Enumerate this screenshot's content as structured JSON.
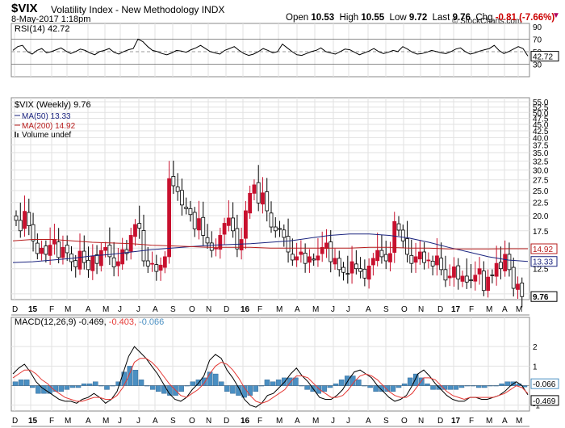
{
  "header": {
    "symbol": "$VIX",
    "name": "Volatility Index - New Methodology INDX",
    "date": "8-May-2017 1:18pm",
    "brand": "© StockCharts.com",
    "open_label": "Open",
    "open": "10.53",
    "high_label": "High",
    "high": "10.55",
    "low_label": "Low",
    "low": "9.72",
    "last_label": "Last",
    "last": "9.76",
    "chg_label": "Chg",
    "chg": "-0.81 (-7.66%)",
    "down_icon": "down-triangle-icon"
  },
  "colors": {
    "up": "#000000",
    "down": "#c8102e",
    "ma50": "#1a237e",
    "ma200": "#b71c1c",
    "macd_hist": "#4a8fc2",
    "macd_signal": "#e53935",
    "rsi": "#000000"
  },
  "chart_data": [
    {
      "type": "line",
      "title": "RSI(14) 42.72",
      "legend": [
        {
          "label": "RSI(14) 42.72"
        }
      ],
      "ylim": [
        10,
        95
      ],
      "yticks": [
        "90",
        "70",
        "50",
        "30"
      ],
      "ref_lines": [
        70,
        30
      ],
      "last_value": "42.72",
      "series": [
        {
          "name": "RSI(14)",
          "values": [
            52,
            58,
            60,
            50,
            46,
            52,
            55,
            48,
            50,
            53,
            56,
            51,
            47,
            50,
            54,
            52,
            48,
            45,
            50,
            52,
            55,
            49,
            46,
            50,
            53,
            55,
            70,
            66,
            58,
            52,
            50,
            47,
            45,
            48,
            52,
            51,
            49,
            53,
            56,
            60,
            55,
            50,
            48,
            46,
            52,
            55,
            58,
            52,
            47,
            44,
            46,
            50,
            55,
            52,
            48,
            50,
            62,
            56,
            50,
            45,
            44,
            47,
            50,
            52,
            56,
            50,
            48,
            46,
            50,
            54,
            53,
            49,
            45,
            48,
            51,
            55,
            50,
            47,
            49,
            52,
            50,
            58,
            54,
            49,
            46,
            47,
            49,
            52,
            50,
            48,
            47,
            50,
            54,
            56,
            50,
            46,
            48,
            51,
            53,
            55,
            60,
            52,
            47,
            50,
            54,
            58,
            55,
            43
          ]
        }
      ]
    },
    {
      "type": "candlestick",
      "title": "$VIX (Weekly) 9.76",
      "legend": [
        {
          "label": "$VIX (Weekly) 9.76",
          "icon": "candle-icon"
        },
        {
          "label": "MA(50) 13.33",
          "color": "#1a237e"
        },
        {
          "label": "MA(200) 14.92",
          "color": "#b71c1c"
        },
        {
          "label": "Volume undef",
          "icon": "volume-bars-icon"
        }
      ],
      "y_scale": "log",
      "ylim": [
        9.5,
        57
      ],
      "yticks": [
        "55.0",
        "52.5",
        "50.0",
        "47.5",
        "45.0",
        "42.5",
        "40.0",
        "37.5",
        "35.0",
        "32.5",
        "30.0",
        "27.5",
        "25.0",
        "22.5",
        "20.0",
        "17.5",
        "15.0",
        "12.5",
        "10.0"
      ],
      "x_labels": [
        "D",
        "15",
        "F",
        "M",
        "A",
        "M",
        "J",
        "J",
        "A",
        "S",
        "O",
        "N",
        "D",
        "16",
        "F",
        "M",
        "A",
        "M",
        "J",
        "J",
        "A",
        "S",
        "O",
        "N",
        "D",
        "17",
        "F",
        "M",
        "A",
        "M"
      ],
      "value_labels": [
        "14.92",
        "13.33",
        "9.76"
      ],
      "closes": [
        19.2,
        17.5,
        20.8,
        18.3,
        16.0,
        14.3,
        15.0,
        14.2,
        15.4,
        16.2,
        13.8,
        15.1,
        14.4,
        13.3,
        12.7,
        14.6,
        13.2,
        12.4,
        14.0,
        13.1,
        14.7,
        15.1,
        13.9,
        12.7,
        13.3,
        14.8,
        14.3,
        16.8,
        18.5,
        17.9,
        13.4,
        12.8,
        13.1,
        12.2,
        12.9,
        13.9,
        27.8,
        26.1,
        24.8,
        22.0,
        21.3,
        20.2,
        17.8,
        19.5,
        16.8,
        15.7,
        14.7,
        15.0,
        16.8,
        18.7,
        19.6,
        17.5,
        14.9,
        16.2,
        20.9,
        24.4,
        26.3,
        22.4,
        24.5,
        20.9,
        18.1,
        17.5,
        17.8,
        16.5,
        14.5,
        13.5,
        13.9,
        14.5,
        13.1,
        13.9,
        13.5,
        14.0,
        15.1,
        15.7,
        13.3,
        13.7,
        12.4,
        12.1,
        11.9,
        13.3,
        12.5,
        12.2,
        11.5,
        12.8,
        13.7,
        14.7,
        13.9,
        13.4,
        14.3,
        19.0,
        17.6,
        16.0,
        14.2,
        13.1,
        13.9,
        14.5,
        13.2,
        13.5,
        12.8,
        14.0,
        12.4,
        11.3,
        11.7,
        12.7,
        11.4,
        11.7,
        11.1,
        11.3,
        11.8,
        12.5,
        10.3,
        11.6,
        11.8,
        13.1,
        12.5,
        14.2,
        12.4,
        10.5,
        10.9,
        9.76
      ],
      "series": [
        {
          "name": "MA(50)",
          "values": [
            13.2,
            13.3,
            13.5,
            13.7,
            14.0,
            14.2,
            14.5,
            14.8,
            15.0,
            15.2,
            15.4,
            15.5,
            15.6,
            15.8,
            16.0,
            16.4,
            16.8,
            17.0,
            17.0,
            16.8,
            16.4,
            15.8,
            15.1,
            14.5,
            13.9,
            13.5,
            13.33
          ]
        },
        {
          "name": "MA(200)",
          "values": [
            16.0,
            16.2,
            16.2,
            16.0,
            15.8,
            15.7,
            15.6,
            15.4,
            15.3,
            15.2,
            15.1,
            15.1,
            15.1,
            15.0,
            15.0,
            15.0,
            15.0,
            15.0,
            15.1,
            15.1,
            15.0,
            15.0,
            14.9,
            14.9,
            14.9,
            14.92,
            14.92
          ]
        }
      ]
    },
    {
      "type": "line",
      "title": "MACD(12,26,9)",
      "legend": [
        {
          "label": "MACD(12,26,9) -0.469,",
          "color": "#000000"
        },
        {
          "label": "-0.403,",
          "color": "#e53935"
        },
        {
          "label": "-0.066",
          "color": "#4a8fc2"
        }
      ],
      "ylim": [
        -1.3,
        3
      ],
      "yticks": [
        "2",
        "1",
        "0",
        "-1"
      ],
      "value_labels": [
        "-0.066",
        "-0.469"
      ],
      "series": [
        {
          "name": "MACD",
          "values": [
            0.6,
            0.9,
            1.1,
            0.7,
            0.2,
            -0.1,
            -0.3,
            -0.5,
            -0.7,
            -0.8,
            -0.8,
            -0.9,
            -0.7,
            -0.6,
            -0.4,
            -0.6,
            -0.9,
            -0.7,
            -0.3,
            0.6,
            1.5,
            2.0,
            1.7,
            1.4,
            1.0,
            0.6,
            0.1,
            -0.4,
            -0.7,
            -0.8,
            -0.6,
            -0.2,
            0.1,
            0.5,
            1.3,
            1.6,
            1.4,
            0.8,
            0.4,
            -0.1,
            -0.7,
            -1.0,
            -1.1,
            -0.9,
            -0.5,
            -0.4,
            -0.1,
            0.2,
            0.6,
            0.9,
            0.5,
            0.2,
            -0.2,
            -0.6,
            -0.7,
            -0.7,
            -0.5,
            -0.2,
            0.3,
            0.7,
            0.8,
            0.6,
            0.4,
            0.0,
            -0.3,
            -0.6,
            -0.8,
            -0.7,
            -0.5,
            0.0,
            0.6,
            0.8,
            0.5,
            0.1,
            -0.2,
            -0.5,
            -0.7,
            -0.8,
            -0.8,
            -0.6,
            -0.6,
            -0.7,
            -0.7,
            -0.6,
            -0.5,
            -0.3,
            0.0,
            0.2,
            0.0,
            -0.469
          ]
        },
        {
          "name": "Signal",
          "values": [
            0.4,
            0.6,
            0.8,
            0.8,
            0.6,
            0.3,
            0.1,
            -0.2,
            -0.4,
            -0.6,
            -0.7,
            -0.8,
            -0.8,
            -0.7,
            -0.6,
            -0.6,
            -0.7,
            -0.7,
            -0.5,
            -0.1,
            0.5,
            1.2,
            1.4,
            1.4,
            1.2,
            0.9,
            0.5,
            0.1,
            -0.2,
            -0.5,
            -0.6,
            -0.4,
            -0.2,
            0.1,
            0.6,
            1.0,
            1.2,
            1.1,
            0.8,
            0.4,
            -0.1,
            -0.5,
            -0.8,
            -0.9,
            -0.8,
            -0.6,
            -0.4,
            -0.2,
            0.2,
            0.5,
            0.5,
            0.4,
            0.1,
            -0.2,
            -0.4,
            -0.6,
            -0.6,
            -0.5,
            -0.2,
            0.2,
            0.5,
            0.6,
            0.5,
            0.3,
            0.0,
            -0.3,
            -0.5,
            -0.6,
            -0.6,
            -0.4,
            0.0,
            0.4,
            0.4,
            0.3,
            0.0,
            -0.3,
            -0.5,
            -0.6,
            -0.7,
            -0.6,
            -0.6,
            -0.6,
            -0.6,
            -0.6,
            -0.5,
            -0.4,
            -0.2,
            0.0,
            -0.1,
            -0.403
          ]
        }
      ],
      "histogram": [
        0.2,
        0.3,
        0.3,
        -0.1,
        -0.4,
        -0.4,
        -0.4,
        -0.3,
        -0.3,
        -0.2,
        -0.1,
        -0.1,
        0.1,
        0.1,
        0.2,
        0.0,
        -0.2,
        0.0,
        0.2,
        0.7,
        1.0,
        0.8,
        0.3,
        0.0,
        -0.2,
        -0.3,
        -0.4,
        -0.5,
        -0.5,
        -0.3,
        0.0,
        0.2,
        0.3,
        0.4,
        0.7,
        0.6,
        0.2,
        -0.3,
        -0.4,
        -0.5,
        -0.6,
        -0.5,
        -0.3,
        0.0,
        0.3,
        0.2,
        0.3,
        0.4,
        0.4,
        0.4,
        0.0,
        -0.2,
        -0.3,
        -0.4,
        -0.3,
        -0.1,
        0.1,
        0.3,
        0.5,
        0.5,
        0.3,
        0.0,
        -0.1,
        -0.3,
        -0.3,
        -0.3,
        -0.3,
        -0.1,
        0.1,
        0.4,
        0.6,
        0.4,
        0.1,
        -0.2,
        -0.2,
        -0.2,
        -0.2,
        -0.2,
        -0.1,
        0.0,
        0.0,
        -0.1,
        -0.1,
        0.0,
        0.0,
        0.1,
        0.2,
        0.2,
        0.1,
        -0.066
      ]
    }
  ]
}
